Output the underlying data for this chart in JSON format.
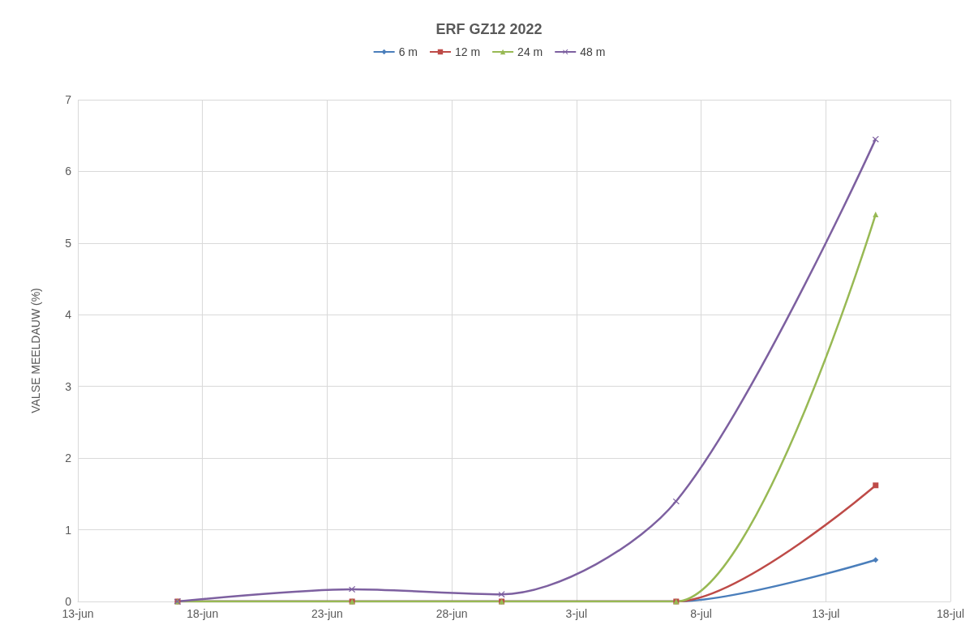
{
  "chart_data": {
    "type": "line",
    "title": "ERF GZ12 2022",
    "ylabel": "VALSE MEELDAUW (%)",
    "x": [
      "--06-17",
      "--06-24",
      "--06-30",
      "--07-07",
      "--07-15"
    ],
    "series": [
      {
        "name": "6 m",
        "color": "#4a7ebb",
        "marker": "diamond",
        "values": [
          0,
          0,
          0,
          0,
          0.58
        ]
      },
      {
        "name": "12 m",
        "color": "#be4b48",
        "marker": "square",
        "values": [
          0,
          0,
          0,
          0,
          1.62
        ]
      },
      {
        "name": "24 m",
        "color": "#98b954",
        "marker": "triangle",
        "values": [
          0,
          0,
          0,
          0,
          5.4
        ]
      },
      {
        "name": "48 m",
        "color": "#7d60a0",
        "marker": "cross",
        "values": [
          0,
          0.17,
          0.1,
          1.4,
          6.45
        ]
      }
    ],
    "xlim": [
      "--06-13",
      "--07-18"
    ],
    "xticks": [
      {
        "value": "--06-13",
        "label": "13-jun"
      },
      {
        "value": "--06-18",
        "label": "18-jun"
      },
      {
        "value": "--06-23",
        "label": "23-jun"
      },
      {
        "value": "--06-28",
        "label": "28-jun"
      },
      {
        "value": "--07-03",
        "label": "3-jul"
      },
      {
        "value": "--07-08",
        "label": "8-jul"
      },
      {
        "value": "--07-13",
        "label": "13-jul"
      },
      {
        "value": "--07-18",
        "label": "18-jul"
      }
    ],
    "ylim": [
      0,
      7
    ],
    "yticks": [
      0,
      1,
      2,
      3,
      4,
      5,
      6,
      7
    ],
    "grid": true,
    "legend": "top"
  }
}
